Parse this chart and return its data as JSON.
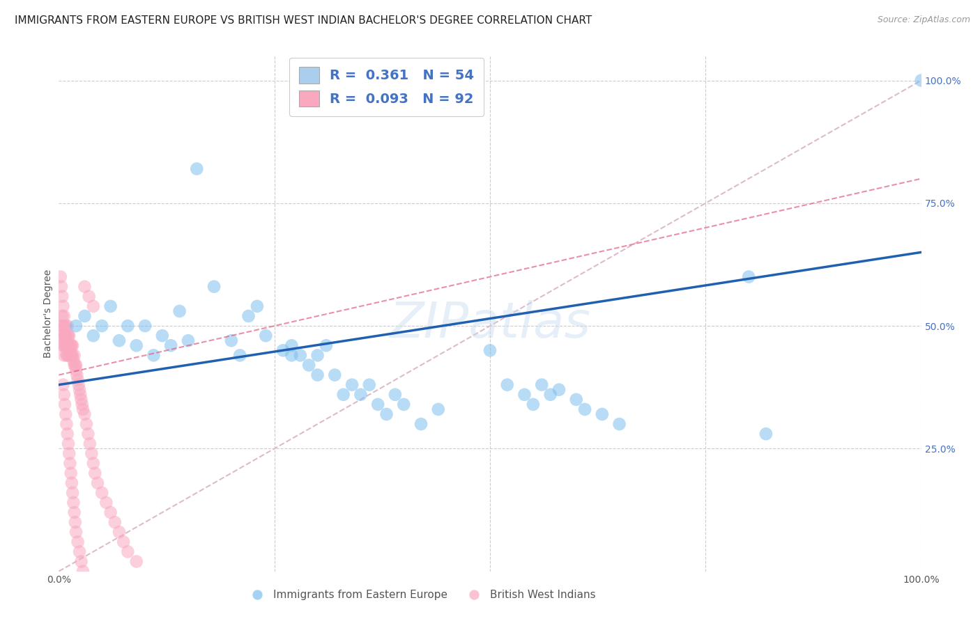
{
  "title": "IMMIGRANTS FROM EASTERN EUROPE VS BRITISH WEST INDIAN BACHELOR'S DEGREE CORRELATION CHART",
  "source": "Source: ZipAtlas.com",
  "ylabel": "Bachelor's Degree",
  "watermark": "ZIPatlas",
  "bg_color": "#ffffff",
  "grid_color": "#cccccc",
  "blue_color": "#7fbfef",
  "pink_color": "#f9a8c0",
  "blue_line_color": "#2060b0",
  "pink_line_color": "#e06080",
  "dashed_line_color": "#ddbbcc",
  "legend_R1": "0.361",
  "legend_N1": "54",
  "legend_R2": "0.093",
  "legend_N2": "92",
  "blue_scatter_x": [
    0.02,
    0.03,
    0.04,
    0.05,
    0.06,
    0.07,
    0.08,
    0.09,
    0.1,
    0.11,
    0.12,
    0.13,
    0.14,
    0.15,
    0.16,
    0.18,
    0.2,
    0.21,
    0.22,
    0.23,
    0.24,
    0.26,
    0.27,
    0.27,
    0.28,
    0.29,
    0.3,
    0.3,
    0.31,
    0.32,
    0.33,
    0.34,
    0.35,
    0.36,
    0.37,
    0.38,
    0.39,
    0.4,
    0.42,
    0.44,
    0.5,
    0.52,
    0.54,
    0.55,
    0.56,
    0.57,
    0.58,
    0.6,
    0.61,
    0.63,
    0.65,
    0.8,
    0.82,
    1.0
  ],
  "blue_scatter_y": [
    0.5,
    0.52,
    0.48,
    0.5,
    0.54,
    0.47,
    0.5,
    0.46,
    0.5,
    0.44,
    0.48,
    0.46,
    0.53,
    0.47,
    0.82,
    0.58,
    0.47,
    0.44,
    0.52,
    0.54,
    0.48,
    0.45,
    0.44,
    0.46,
    0.44,
    0.42,
    0.44,
    0.4,
    0.46,
    0.4,
    0.36,
    0.38,
    0.36,
    0.38,
    0.34,
    0.32,
    0.36,
    0.34,
    0.3,
    0.33,
    0.45,
    0.38,
    0.36,
    0.34,
    0.38,
    0.36,
    0.37,
    0.35,
    0.33,
    0.32,
    0.3,
    0.6,
    0.28,
    1.0
  ],
  "pink_scatter_x": [
    0.002,
    0.003,
    0.004,
    0.004,
    0.005,
    0.005,
    0.006,
    0.006,
    0.007,
    0.007,
    0.008,
    0.008,
    0.009,
    0.009,
    0.01,
    0.01,
    0.01,
    0.011,
    0.011,
    0.011,
    0.012,
    0.012,
    0.013,
    0.013,
    0.014,
    0.014,
    0.015,
    0.015,
    0.016,
    0.016,
    0.017,
    0.018,
    0.018,
    0.019,
    0.02,
    0.02,
    0.021,
    0.022,
    0.023,
    0.024,
    0.025,
    0.026,
    0.027,
    0.028,
    0.03,
    0.032,
    0.034,
    0.036,
    0.038,
    0.04,
    0.042,
    0.045,
    0.05,
    0.055,
    0.06,
    0.065,
    0.07,
    0.075,
    0.08,
    0.09,
    0.005,
    0.006,
    0.007,
    0.008,
    0.009,
    0.01,
    0.011,
    0.012,
    0.013,
    0.014,
    0.015,
    0.016,
    0.017,
    0.018,
    0.019,
    0.02,
    0.022,
    0.024,
    0.026,
    0.028,
    0.03,
    0.035,
    0.04,
    0.002,
    0.003,
    0.004,
    0.005,
    0.006,
    0.007,
    0.008,
    0.009,
    0.01
  ],
  "pink_scatter_y": [
    0.48,
    0.5,
    0.46,
    0.52,
    0.48,
    0.5,
    0.46,
    0.44,
    0.48,
    0.46,
    0.5,
    0.48,
    0.46,
    0.44,
    0.48,
    0.46,
    0.5,
    0.46,
    0.48,
    0.44,
    0.46,
    0.48,
    0.44,
    0.46,
    0.44,
    0.46,
    0.44,
    0.46,
    0.44,
    0.46,
    0.43,
    0.42,
    0.44,
    0.42,
    0.41,
    0.42,
    0.4,
    0.39,
    0.38,
    0.37,
    0.36,
    0.35,
    0.34,
    0.33,
    0.32,
    0.3,
    0.28,
    0.26,
    0.24,
    0.22,
    0.2,
    0.18,
    0.16,
    0.14,
    0.12,
    0.1,
    0.08,
    0.06,
    0.04,
    0.02,
    0.38,
    0.36,
    0.34,
    0.32,
    0.3,
    0.28,
    0.26,
    0.24,
    0.22,
    0.2,
    0.18,
    0.16,
    0.14,
    0.12,
    0.1,
    0.08,
    0.06,
    0.04,
    0.02,
    0.0,
    0.58,
    0.56,
    0.54,
    0.6,
    0.58,
    0.56,
    0.54,
    0.52,
    0.5,
    0.48,
    0.46,
    0.44
  ],
  "xlim": [
    0.0,
    1.0
  ],
  "ylim": [
    0.0,
    1.05
  ],
  "xtick_positions": [
    0.0,
    0.25,
    0.5,
    0.75,
    1.0
  ],
  "xtick_labels": [
    "0.0%",
    "",
    "",
    "",
    "100.0%"
  ],
  "ytick_right_positions": [
    0.25,
    0.5,
    0.75,
    1.0
  ],
  "ytick_right_labels": [
    "25.0%",
    "50.0%",
    "75.0%",
    "100.0%"
  ],
  "title_fontsize": 11,
  "source_fontsize": 9,
  "tick_fontsize": 10,
  "ylabel_fontsize": 10
}
